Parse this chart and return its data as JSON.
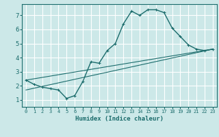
{
  "xlabel": "Humidex (Indice chaleur)",
  "bg_color": "#cce8e8",
  "grid_color": "#ffffff",
  "line_color": "#1a6b6b",
  "xlim": [
    -0.5,
    23.5
  ],
  "ylim": [
    0.5,
    7.8
  ],
  "yticks": [
    1,
    2,
    3,
    4,
    5,
    6,
    7
  ],
  "xticks": [
    0,
    1,
    2,
    3,
    4,
    5,
    6,
    7,
    8,
    9,
    10,
    11,
    12,
    13,
    14,
    15,
    16,
    17,
    18,
    19,
    20,
    21,
    22,
    23
  ],
  "series": [
    {
      "x": [
        0,
        1,
        2,
        3,
        4,
        5,
        6,
        7,
        8,
        9,
        10,
        11,
        12,
        13,
        14,
        15,
        16,
        17,
        18,
        19,
        20,
        21,
        22,
        23
      ],
      "y": [
        2.4,
        2.1,
        1.9,
        1.8,
        1.7,
        1.1,
        1.3,
        2.3,
        3.7,
        3.6,
        4.5,
        5.0,
        6.4,
        7.3,
        7.0,
        7.4,
        7.4,
        7.2,
        6.1,
        5.5,
        4.9,
        4.6,
        4.5,
        4.6
      ]
    },
    {
      "x": [
        0,
        23
      ],
      "y": [
        2.4,
        4.6
      ]
    },
    {
      "x": [
        0,
        23
      ],
      "y": [
        1.7,
        4.6
      ]
    }
  ]
}
